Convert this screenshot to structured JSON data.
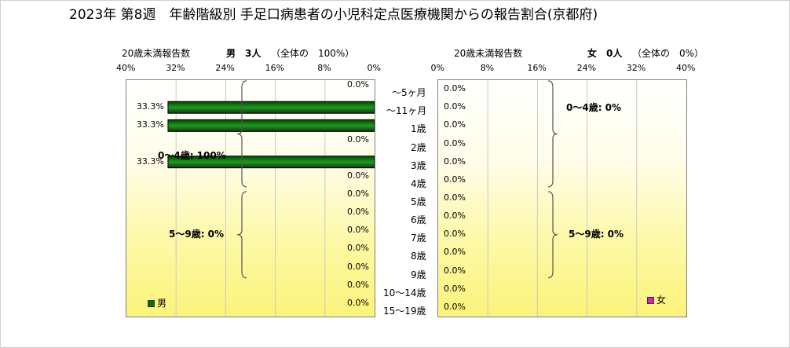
{
  "title": "2023年 第8週　年齢階級別 手足口病患者の小児科定点医療機関からの報告割合(京都府)",
  "chart_data": {
    "type": "bar",
    "categories": [
      "～5ヶ月",
      "～11ヶ月",
      "1歳",
      "2歳",
      "3歳",
      "4歳",
      "5歳",
      "6歳",
      "7歳",
      "8歳",
      "9歳",
      "10～14歳",
      "15～19歳"
    ],
    "xlim": [
      0,
      40
    ],
    "xticks": [
      "40%",
      "32%",
      "24%",
      "16%",
      "8%",
      "0%"
    ],
    "xticks_right": [
      "0%",
      "8%",
      "16%",
      "24%",
      "32%",
      "40%"
    ],
    "grid": true,
    "male": {
      "header_count_label": "20歳未満報告数",
      "header_total": "男　3人",
      "header_share": "（全体の　100%）",
      "values": [
        0,
        33.3,
        33.3,
        0,
        33.3,
        0,
        0,
        0,
        0,
        0,
        0,
        0,
        0
      ],
      "value_labels": [
        "0.0%",
        "33.3%",
        "33.3%",
        "0.0%",
        "33.3%",
        "0.0%",
        "0.0%",
        "0.0%",
        "0.0%",
        "0.0%",
        "0.0%",
        "0.0%",
        "0.0%"
      ],
      "color": "#0b6e0b",
      "legend": "男",
      "groups": [
        "0～4歳: 100%",
        "5～9歳: 0%"
      ]
    },
    "female": {
      "header_count_label": "20歳未満報告数",
      "header_total": "女　0人",
      "header_share": "（全体の　0%）",
      "values": [
        0,
        0,
        0,
        0,
        0,
        0,
        0,
        0,
        0,
        0,
        0,
        0,
        0
      ],
      "value_labels": [
        "0.0%",
        "0.0%",
        "0.0%",
        "0.0%",
        "0.0%",
        "0.0%",
        "0.0%",
        "0.0%",
        "0.0%",
        "0.0%",
        "0.0%",
        "0.0%",
        "0.0%"
      ],
      "color": "#e020c0",
      "legend": "女",
      "groups": [
        "0～4歳: 0%",
        "5～9歳: 0%"
      ]
    }
  }
}
